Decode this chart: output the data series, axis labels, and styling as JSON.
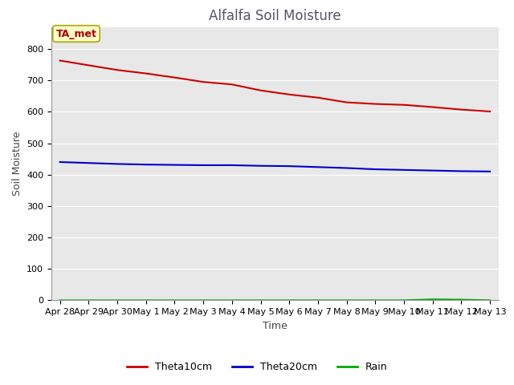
{
  "title": "Alfalfa Soil Moisture",
  "xlabel": "Time",
  "ylabel": "Soil Moisture",
  "background_color": "#e8e8e8",
  "annotation_text": "TA_met",
  "annotation_color": "#aa0000",
  "annotation_bg": "#ffffcc",
  "annotation_border": "#aaaa00",
  "ylim": [
    0,
    870
  ],
  "yticks": [
    0,
    100,
    200,
    300,
    400,
    500,
    600,
    700,
    800
  ],
  "x_labels": [
    "Apr 28",
    "Apr 29",
    "Apr 30",
    "May 1",
    "May 2",
    "May 3",
    "May 4",
    "May 5",
    "May 6",
    "May 7",
    "May 8",
    "May 9",
    "May 10",
    "May 11",
    "May 12",
    "May 13"
  ],
  "theta10_values": [
    763,
    748,
    733,
    722,
    709,
    695,
    687,
    668,
    655,
    645,
    630,
    625,
    622,
    615,
    607,
    601
  ],
  "theta20_values": [
    440,
    437,
    434,
    432,
    431,
    430,
    430,
    428,
    427,
    424,
    421,
    417,
    415,
    413,
    411,
    410
  ],
  "rain_values": [
    0,
    0,
    0,
    0,
    0,
    0,
    0,
    0,
    0,
    0,
    0,
    0,
    0,
    3,
    2,
    0
  ],
  "theta10_color": "#cc0000",
  "theta20_color": "#0000cc",
  "rain_color": "#00aa00",
  "legend_labels": [
    "Theta10cm",
    "Theta20cm",
    "Rain"
  ],
  "title_color": "#555566",
  "title_fontsize": 12,
  "tick_fontsize": 8,
  "ylabel_fontsize": 9,
  "xlabel_fontsize": 9
}
